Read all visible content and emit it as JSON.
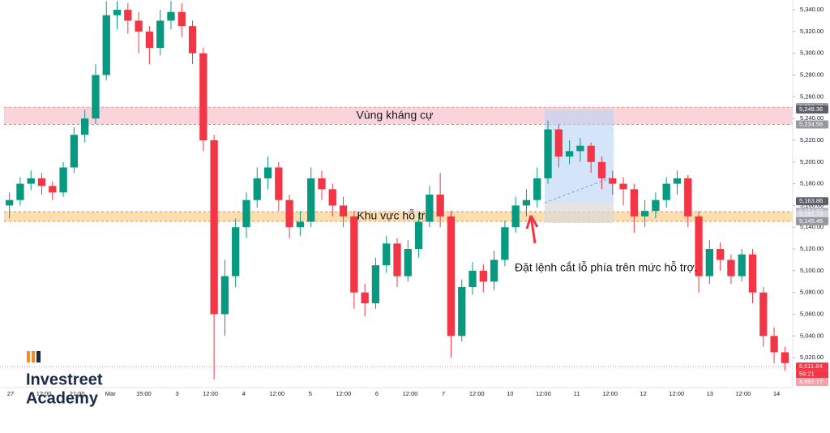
{
  "chart_data": {
    "type": "candlestick",
    "up_color": "#089981",
    "down_color": "#f23645",
    "ylim": [
      4994,
      5349
    ],
    "yticks": [
      {
        "value": 5020,
        "label": "5,020.00"
      },
      {
        "value": 5040,
        "label": "5,040.00"
      },
      {
        "value": 5060,
        "label": "5,060.00"
      },
      {
        "value": 5080,
        "label": "5,080.00"
      },
      {
        "value": 5100,
        "label": "5,100.00"
      },
      {
        "value": 5120,
        "label": "5,120.00"
      },
      {
        "value": 5140,
        "label": "5,140.00"
      },
      {
        "value": 5160,
        "label": "5,160.00"
      },
      {
        "value": 5180,
        "label": "5,180.00"
      },
      {
        "value": 5200,
        "label": "5,200.00"
      },
      {
        "value": 5220,
        "label": "5,220.00"
      },
      {
        "value": 5240,
        "label": "5,240.00"
      },
      {
        "value": 5260,
        "label": "5,260.00"
      },
      {
        "value": 5280,
        "label": "5,280.00"
      },
      {
        "value": 5300,
        "label": "5,300.00"
      },
      {
        "value": 5320,
        "label": "5,320.00"
      },
      {
        "value": 5340,
        "label": "5,340.00"
      }
    ],
    "x_axis_labels": [
      "27",
      "12:00",
      "21:00",
      "Mar",
      "15:00",
      "3",
      "12:00",
      "4",
      "12:00",
      "5",
      "12:00",
      "6",
      "12:00",
      "7",
      "12:00",
      "10",
      "12:00",
      "11",
      "12:00",
      "12",
      "12:00",
      "13",
      "12:00",
      "14"
    ],
    "open": [
      5160,
      5165,
      5180,
      5185,
      5178,
      5172,
      5195,
      5225,
      5240,
      5280,
      5335,
      5340,
      5330,
      5320,
      5305,
      5330,
      5338,
      5325,
      5300,
      5220,
      5060,
      5095,
      5140,
      5165,
      5185,
      5195,
      5165,
      5140,
      5145,
      5185,
      5175,
      5160,
      5150,
      5080,
      5070,
      5105,
      5125,
      5095,
      5120,
      5145,
      5170,
      5150,
      5040,
      5085,
      5100,
      5090,
      5110,
      5140,
      5160,
      5165,
      5185,
      5230,
      5205,
      5210,
      5215,
      5200,
      5185,
      5180,
      5175,
      5150,
      5155,
      5165,
      5180,
      5185,
      5150,
      5095,
      5120,
      5110,
      5095,
      5115,
      5080,
      5040,
      5025
    ],
    "high": [
      5172,
      5186,
      5192,
      5190,
      5182,
      5200,
      5232,
      5248,
      5290,
      5348,
      5348,
      5346,
      5338,
      5325,
      5340,
      5348,
      5346,
      5330,
      5305,
      5225,
      5110,
      5148,
      5172,
      5195,
      5205,
      5200,
      5170,
      5155,
      5195,
      5192,
      5180,
      5168,
      5155,
      5088,
      5112,
      5132,
      5130,
      5128,
      5152,
      5178,
      5190,
      5155,
      5092,
      5108,
      5106,
      5118,
      5146,
      5168,
      5175,
      5195,
      5238,
      5235,
      5220,
      5222,
      5218,
      5205,
      5192,
      5186,
      5180,
      5165,
      5172,
      5186,
      5192,
      5188,
      5155,
      5128,
      5126,
      5115,
      5120,
      5120,
      5085,
      5048,
      5030
    ],
    "low": [
      5148,
      5160,
      5174,
      5170,
      5165,
      5168,
      5190,
      5218,
      5235,
      5275,
      5322,
      5318,
      5300,
      5290,
      5298,
      5322,
      5315,
      5290,
      5210,
      5000,
      5040,
      5085,
      5130,
      5158,
      5175,
      5155,
      5130,
      5132,
      5140,
      5165,
      5150,
      5140,
      5065,
      5058,
      5065,
      5098,
      5085,
      5090,
      5112,
      5140,
      5140,
      5020,
      5035,
      5078,
      5080,
      5082,
      5104,
      5135,
      5150,
      5158,
      5180,
      5195,
      5198,
      5200,
      5190,
      5175,
      5170,
      5160,
      5135,
      5140,
      5148,
      5158,
      5170,
      5140,
      5080,
      5088,
      5100,
      5088,
      5090,
      5070,
      5030,
      5015,
      5008
    ],
    "close": [
      5165,
      5180,
      5185,
      5178,
      5172,
      5195,
      5225,
      5240,
      5280,
      5335,
      5340,
      5330,
      5320,
      5305,
      5330,
      5338,
      5325,
      5300,
      5220,
      5060,
      5095,
      5140,
      5165,
      5185,
      5195,
      5165,
      5140,
      5145,
      5185,
      5175,
      5160,
      5150,
      5080,
      5070,
      5105,
      5125,
      5095,
      5120,
      5145,
      5170,
      5150,
      5040,
      5085,
      5100,
      5090,
      5110,
      5140,
      5160,
      5165,
      5185,
      5230,
      5205,
      5210,
      5215,
      5200,
      5185,
      5180,
      5175,
      5150,
      5155,
      5165,
      5180,
      5185,
      5150,
      5095,
      5120,
      5110,
      5095,
      5115,
      5080,
      5040,
      5025,
      5015
    ],
    "zones": [
      {
        "name": "Vùng kháng cự",
        "low": 5234.56,
        "high": 5250.46,
        "color": "#f8c9d2"
      },
      {
        "name": "Khu vực hỗ trợ",
        "low": 5145.45,
        "high": 5154.28,
        "color": "#fcd79a"
      }
    ],
    "annotation": "Đặt lệnh cắt lỗ phía trên mức hỗ trợ.",
    "price_labels": [
      {
        "value": 5250.46,
        "label": "5,250.46",
        "color": "#9598a1"
      },
      {
        "value": 5248.36,
        "label": "5,248.36",
        "color": "#5d606b"
      },
      {
        "value": 5234.56,
        "label": "5,234.56",
        "color": "#9598a1"
      },
      {
        "value": 5163.86,
        "label": "5,163.86",
        "color": "#5d606b"
      },
      {
        "value": 5154.28,
        "label": "5,154.28",
        "color": "#b2b5be"
      },
      {
        "value": 5151.73,
        "label": "5,151.73",
        "color": "#d1d4dc"
      },
      {
        "value": 5145.45,
        "label": "5,145.45",
        "color": "#9598a1"
      },
      {
        "value": 5011.84,
        "label": "5,011.84",
        "color": "#f23645"
      },
      {
        "value": 4997.77,
        "label": "4,997.77",
        "color": "#f7a1a9"
      }
    ],
    "countdown": "59:21",
    "logo": [
      "Investreet",
      "Academy"
    ]
  }
}
